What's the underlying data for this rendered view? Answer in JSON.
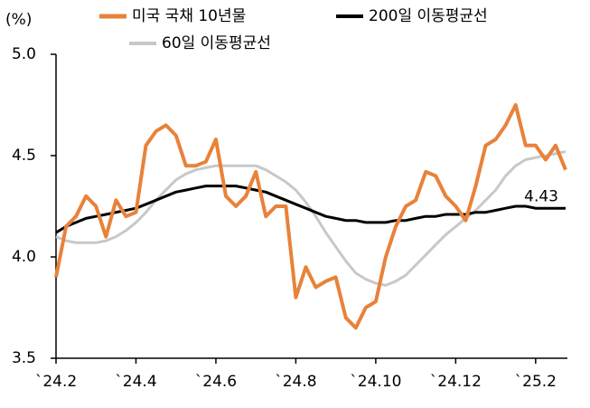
{
  "chart_data": {
    "type": "line",
    "y_label": "(%)",
    "categories": [
      "`24.2",
      null,
      null,
      null,
      null,
      null,
      null,
      null,
      "`24.4",
      null,
      null,
      null,
      null,
      null,
      null,
      null,
      "`24.6",
      null,
      null,
      null,
      null,
      null,
      null,
      null,
      "`24.8",
      null,
      null,
      null,
      null,
      null,
      null,
      null,
      "`24.10",
      null,
      null,
      null,
      null,
      null,
      null,
      null,
      "`24.12",
      null,
      null,
      null,
      null,
      null,
      null,
      null,
      "`25.2",
      null,
      null,
      null
    ],
    "series": [
      {
        "name": "미국 국채 10년물",
        "color": "#e8823a",
        "width": 4,
        "values": [
          3.9,
          4.15,
          4.2,
          4.3,
          4.25,
          4.1,
          4.28,
          4.2,
          4.22,
          4.55,
          4.62,
          4.65,
          4.6,
          4.45,
          4.45,
          4.47,
          4.58,
          4.3,
          4.25,
          4.3,
          4.42,
          4.2,
          4.25,
          4.25,
          3.8,
          3.95,
          3.85,
          3.88,
          3.9,
          3.7,
          3.65,
          3.75,
          3.78,
          4.0,
          4.15,
          4.25,
          4.28,
          4.42,
          4.4,
          4.3,
          4.25,
          4.18,
          4.35,
          4.55,
          4.58,
          4.65,
          4.75,
          4.55,
          4.55,
          4.48,
          4.55,
          4.43
        ],
        "value_labels": [
          null,
          null,
          null,
          null,
          null,
          null,
          null,
          null,
          null,
          null,
          null,
          null,
          null,
          null,
          null,
          null,
          null,
          null,
          null,
          null,
          null,
          null,
          null,
          null,
          null,
          null,
          null,
          null,
          null,
          null,
          null,
          null,
          null,
          null,
          null,
          null,
          null,
          null,
          null,
          null,
          null,
          null,
          null,
          null,
          null,
          null,
          null,
          null,
          null,
          null,
          null,
          "4.43"
        ]
      },
      {
        "name": "200일 이동평균선",
        "color": "#000000",
        "width": 3,
        "values": [
          4.12,
          4.15,
          4.17,
          4.19,
          4.2,
          4.21,
          4.22,
          4.23,
          4.24,
          4.26,
          4.28,
          4.3,
          4.32,
          4.33,
          4.34,
          4.35,
          4.35,
          4.35,
          4.35,
          4.34,
          4.33,
          4.32,
          4.3,
          4.28,
          4.26,
          4.24,
          4.22,
          4.2,
          4.19,
          4.18,
          4.18,
          4.17,
          4.17,
          4.17,
          4.18,
          4.18,
          4.19,
          4.2,
          4.2,
          4.21,
          4.21,
          4.21,
          4.22,
          4.22,
          4.23,
          4.24,
          4.25,
          4.25,
          4.24,
          4.24,
          4.24,
          4.24
        ]
      },
      {
        "name": "60일 이동평균선",
        "color": "#c8c8c8",
        "width": 3,
        "values": [
          4.1,
          4.08,
          4.07,
          4.07,
          4.07,
          4.08,
          4.1,
          4.13,
          4.17,
          4.22,
          4.28,
          4.33,
          4.38,
          4.41,
          4.43,
          4.44,
          4.45,
          4.45,
          4.45,
          4.45,
          4.45,
          4.43,
          4.4,
          4.37,
          4.33,
          4.27,
          4.2,
          4.12,
          4.05,
          3.98,
          3.92,
          3.89,
          3.87,
          3.86,
          3.88,
          3.91,
          3.96,
          4.01,
          4.06,
          4.11,
          4.15,
          4.19,
          4.23,
          4.28,
          4.33,
          4.4,
          4.45,
          4.48,
          4.49,
          4.5,
          4.51,
          4.52
        ]
      }
    ],
    "ylim": [
      3.5,
      5.0
    ],
    "yticks": [
      {
        "value": 3.5,
        "label": "3.5"
      },
      {
        "value": 4.0,
        "label": "4.0"
      },
      {
        "value": 4.5,
        "label": "4.5"
      },
      {
        "value": 5.0,
        "label": "5.0"
      }
    ]
  }
}
